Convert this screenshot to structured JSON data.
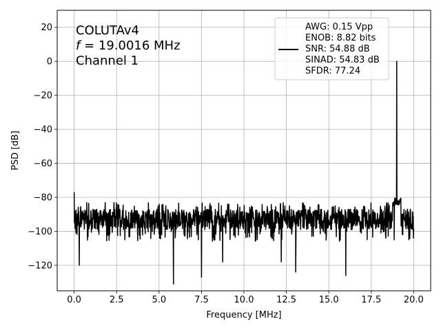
{
  "chart_data": {
    "type": "line",
    "xlabel": "Frequency [MHz]",
    "ylabel": "PSD [dB]",
    "xlim": [
      -1.0,
      21.0
    ],
    "ylim": [
      -135,
      30
    ],
    "xticks": [
      0.0,
      2.5,
      5.0,
      7.5,
      10.0,
      12.5,
      15.0,
      17.5,
      20.0
    ],
    "xtick_labels": [
      "0.0",
      "2.5",
      "5.0",
      "7.5",
      "10.0",
      "12.5",
      "15.0",
      "17.5",
      "20.0"
    ],
    "yticks": [
      20,
      0,
      -20,
      -40,
      -60,
      -80,
      -100,
      -120
    ],
    "ytick_labels": [
      "20",
      "0",
      "−20",
      "−40",
      "−60",
      "−80",
      "−100",
      "−120"
    ],
    "grid": true,
    "annotation": {
      "line1": "COLUTAv4",
      "line2_italic": "f",
      "line2_rest": " = 19.0016 MHz",
      "line3": "Channel 1"
    },
    "legend": {
      "placement": "upper-right",
      "lines": [
        "AWG: 0.15 Vpp",
        "ENOB: 8.82 bits",
        "SNR: 54.88 dB",
        "SINAD: 54.83 dB",
        "SFDR: 77.24"
      ]
    },
    "series": [
      {
        "color": "#000000",
        "noise_floor_db": -93,
        "noise_top_db": -83,
        "noise_bottom_db": -106,
        "dc_value_db": -77,
        "fundamental": {
          "x": 19.0016,
          "y": 0
        },
        "fundamental_skirt_db": -80,
        "deep_dips": [
          {
            "x": 0.3,
            "y": -120
          },
          {
            "x": 5.85,
            "y": -131
          },
          {
            "x": 7.5,
            "y": -127
          },
          {
            "x": 8.75,
            "y": -118
          },
          {
            "x": 12.2,
            "y": -118
          },
          {
            "x": 13.05,
            "y": -124
          },
          {
            "x": 16.0,
            "y": -126
          },
          {
            "x": 18.85,
            "y": -105
          }
        ]
      }
    ]
  }
}
